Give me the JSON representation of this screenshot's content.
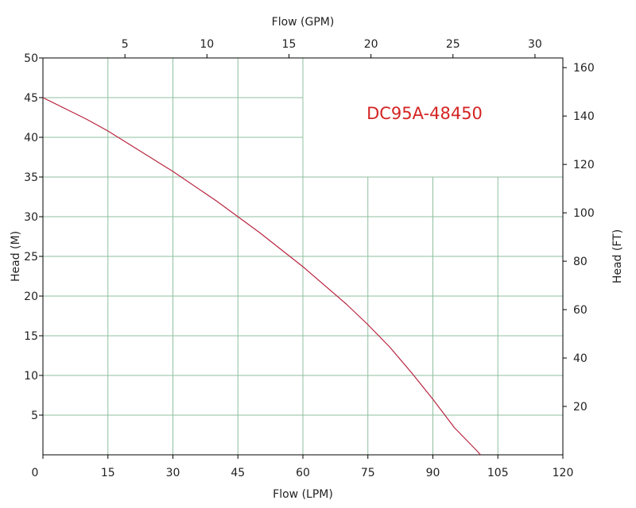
{
  "chart_data": {
    "type": "line",
    "model_label": "DC95A-48450",
    "x_bottom": {
      "label": "Flow (LPM)",
      "range": [
        0,
        120
      ],
      "ticks": [
        0,
        15,
        30,
        45,
        60,
        75,
        90,
        105,
        120
      ]
    },
    "x_top": {
      "label": "Flow (GPM)",
      "range": [
        0,
        31.7
      ],
      "ticks": [
        5,
        10,
        15,
        20,
        25,
        30
      ]
    },
    "y_left": {
      "label": "Head (M)",
      "range": [
        0,
        50
      ],
      "ticks": [
        5,
        10,
        15,
        20,
        25,
        30,
        35,
        40,
        45,
        50
      ]
    },
    "y_right": {
      "label": "Head (FT)",
      "range": [
        0,
        164
      ],
      "ticks": [
        20,
        40,
        60,
        80,
        100,
        120,
        140,
        160
      ]
    },
    "grid": true,
    "series": [
      {
        "x": [
          0,
          10,
          15,
          20,
          30,
          40,
          45,
          50,
          60,
          70,
          75,
          80,
          85,
          90,
          95,
          100,
          101
        ],
        "y": [
          45.0,
          42.3,
          40.8,
          39.1,
          35.7,
          32.0,
          30.0,
          28.0,
          23.7,
          19.0,
          16.4,
          13.6,
          10.4,
          7.0,
          3.4,
          0.6,
          0
        ]
      }
    ],
    "colors": {
      "curve": "#b8253f",
      "label": "#d42424",
      "grid_major": "#8fbf9f",
      "grid_minor": "#cfe2d4",
      "axis": "#000000"
    }
  }
}
